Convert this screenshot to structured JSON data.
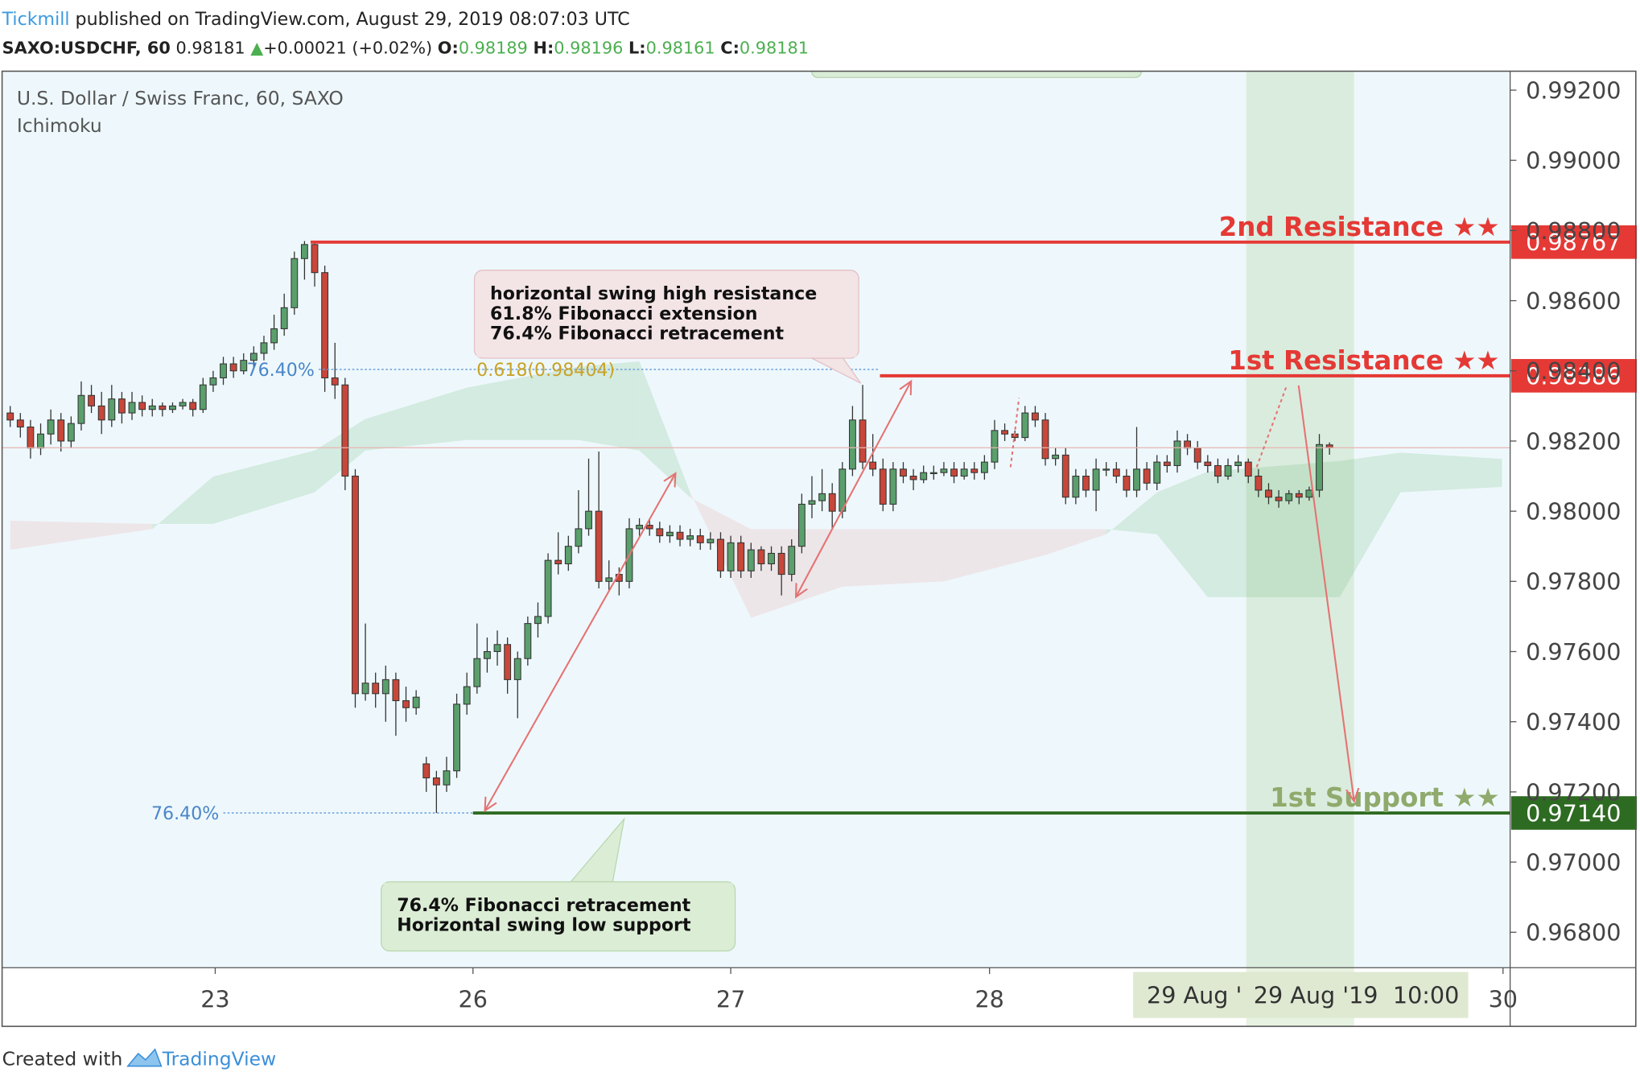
{
  "header": {
    "brand": "Tickmill",
    "published": "published on TradingView.com, August 29, 2019 08:07:03 UTC",
    "symbol": "SAXO:USDCHF, 60",
    "last": "0.98181",
    "arrow": "▲",
    "change": "+0.00021 (+0.02%)",
    "o_label": "O:",
    "o": "0.98189",
    "h_label": "H:",
    "h": "0.98196",
    "l_label": "L:",
    "l": "0.98161",
    "c_label": "C:",
    "c": "0.98181"
  },
  "chart_data": {
    "type": "candlestick",
    "title": "U.S. Dollar / Swiss Franc, 60, SAXO",
    "subtitle": "Ichimoku",
    "up_color": "#5a9f6c",
    "down_color": "#c8473a",
    "xlim": [
      -0.8,
      147.8
    ],
    "xticks": [
      {
        "value": 20.2,
        "label": "23"
      },
      {
        "value": 45.6,
        "label": "26"
      },
      {
        "value": 71.0,
        "label": "27"
      },
      {
        "value": 96.5,
        "label": "28"
      },
      {
        "value": 147.1,
        "label": "30"
      }
    ],
    "ylim": [
      0.96699,
      0.99254
    ],
    "yticks": [
      {
        "value": 0.968,
        "label": "0.96800"
      },
      {
        "value": 0.97,
        "label": "0.97000"
      },
      {
        "value": 0.972,
        "label": "0.97200"
      },
      {
        "value": 0.974,
        "label": "0.97400"
      },
      {
        "value": 0.976,
        "label": "0.97600"
      },
      {
        "value": 0.978,
        "label": "0.97800"
      },
      {
        "value": 0.98,
        "label": "0.98000"
      },
      {
        "value": 0.982,
        "label": "0.98200"
      },
      {
        "value": 0.984,
        "label": "0.98400"
      },
      {
        "value": 0.986,
        "label": "0.98600"
      },
      {
        "value": 0.988,
        "label": "0.98800"
      },
      {
        "value": 0.99,
        "label": "0.99000"
      },
      {
        "value": 0.992,
        "label": "0.99200"
      }
    ],
    "candles": [
      [
        0.9828,
        0.983,
        0.9824,
        0.9826
      ],
      [
        0.9826,
        0.9828,
        0.9821,
        0.9824
      ],
      [
        0.9824,
        0.9826,
        0.9815,
        0.9818
      ],
      [
        0.9818,
        0.9825,
        0.9816,
        0.9822
      ],
      [
        0.9822,
        0.9829,
        0.9819,
        0.9826
      ],
      [
        0.9826,
        0.9828,
        0.9817,
        0.982
      ],
      [
        0.982,
        0.9827,
        0.9818,
        0.9825
      ],
      [
        0.9825,
        0.9837,
        0.9823,
        0.9833
      ],
      [
        0.9833,
        0.9836,
        0.9828,
        0.983
      ],
      [
        0.983,
        0.9834,
        0.9822,
        0.9826
      ],
      [
        0.9826,
        0.9836,
        0.9824,
        0.9832
      ],
      [
        0.9832,
        0.9834,
        0.9825,
        0.9828
      ],
      [
        0.9828,
        0.9834,
        0.9826,
        0.9831
      ],
      [
        0.9831,
        0.9833,
        0.9827,
        0.9829
      ],
      [
        0.9829,
        0.9832,
        0.9827,
        0.983
      ],
      [
        0.983,
        0.9831,
        0.9827,
        0.9829
      ],
      [
        0.9829,
        0.9831,
        0.9828,
        0.983
      ],
      [
        0.983,
        0.9832,
        0.9829,
        0.9831
      ],
      [
        0.9831,
        0.9832,
        0.9827,
        0.9829
      ],
      [
        0.9829,
        0.9838,
        0.9828,
        0.9836
      ],
      [
        0.9836,
        0.984,
        0.9834,
        0.9838
      ],
      [
        0.9838,
        0.9844,
        0.9836,
        0.9842
      ],
      [
        0.9842,
        0.9844,
        0.9838,
        0.984
      ],
      [
        0.984,
        0.9845,
        0.9839,
        0.9843
      ],
      [
        0.9843,
        0.9847,
        0.9841,
        0.9845
      ],
      [
        0.9845,
        0.985,
        0.9843,
        0.9848
      ],
      [
        0.9848,
        0.9856,
        0.9846,
        0.9852
      ],
      [
        0.9852,
        0.9862,
        0.985,
        0.9858
      ],
      [
        0.9858,
        0.9874,
        0.9856,
        0.9872
      ],
      [
        0.9872,
        0.9877,
        0.9866,
        0.9876
      ],
      [
        0.9876,
        0.9877,
        0.9864,
        0.9868
      ],
      [
        0.9868,
        0.987,
        0.9834,
        0.9838
      ],
      [
        0.9838,
        0.9848,
        0.9832,
        0.9836
      ],
      [
        0.9836,
        0.9838,
        0.9806,
        0.981
      ],
      [
        0.981,
        0.9812,
        0.9744,
        0.9748
      ],
      [
        0.9748,
        0.9768,
        0.9746,
        0.9751
      ],
      [
        0.9751,
        0.9754,
        0.9744,
        0.9748
      ],
      [
        0.9748,
        0.9756,
        0.974,
        0.9752
      ],
      [
        0.9752,
        0.9754,
        0.9736,
        0.9746
      ],
      [
        0.9746,
        0.975,
        0.974,
        0.9744
      ],
      [
        0.9744,
        0.9749,
        0.9742,
        0.9747
      ],
      [
        0.9728,
        0.973,
        0.972,
        0.9724
      ],
      [
        0.9724,
        0.9726,
        0.9714,
        0.9722
      ],
      [
        0.9722,
        0.973,
        0.972,
        0.9726
      ],
      [
        0.9726,
        0.9748,
        0.9724,
        0.9745
      ],
      [
        0.9745,
        0.9754,
        0.9742,
        0.975
      ],
      [
        0.975,
        0.9768,
        0.9748,
        0.9758
      ],
      [
        0.9758,
        0.9764,
        0.9754,
        0.976
      ],
      [
        0.976,
        0.9766,
        0.9756,
        0.9762
      ],
      [
        0.9762,
        0.9764,
        0.9748,
        0.9752
      ],
      [
        0.9752,
        0.976,
        0.9741,
        0.9758
      ],
      [
        0.9758,
        0.977,
        0.9756,
        0.9768
      ],
      [
        0.9768,
        0.9774,
        0.9764,
        0.977
      ],
      [
        0.977,
        0.9788,
        0.9768,
        0.9786
      ],
      [
        0.9786,
        0.9794,
        0.9782,
        0.9785
      ],
      [
        0.9785,
        0.9793,
        0.9783,
        0.979
      ],
      [
        0.979,
        0.9806,
        0.9788,
        0.9795
      ],
      [
        0.9795,
        0.9815,
        0.9793,
        0.98
      ],
      [
        0.98,
        0.9817,
        0.9778,
        0.978
      ],
      [
        0.978,
        0.9786,
        0.9777,
        0.9781
      ],
      [
        0.9782,
        0.9784,
        0.9776,
        0.978
      ],
      [
        0.978,
        0.9798,
        0.9778,
        0.9795
      ],
      [
        0.9795,
        0.9798,
        0.9793,
        0.9796
      ],
      [
        0.9796,
        0.9798,
        0.9793,
        0.9795
      ],
      [
        0.9795,
        0.9797,
        0.9791,
        0.9793
      ],
      [
        0.9793,
        0.9796,
        0.9791,
        0.9794
      ],
      [
        0.9794,
        0.9796,
        0.979,
        0.9792
      ],
      [
        0.9792,
        0.9795,
        0.979,
        0.9793
      ],
      [
        0.9793,
        0.9795,
        0.9789,
        0.9791
      ],
      [
        0.9791,
        0.9794,
        0.9789,
        0.9792
      ],
      [
        0.9792,
        0.9794,
        0.9781,
        0.9783
      ],
      [
        0.9783,
        0.9793,
        0.9781,
        0.9791
      ],
      [
        0.9791,
        0.9793,
        0.9781,
        0.9783
      ],
      [
        0.9783,
        0.9791,
        0.9781,
        0.9789
      ],
      [
        0.9789,
        0.979,
        0.9783,
        0.9785
      ],
      [
        0.9785,
        0.979,
        0.9783,
        0.9788
      ],
      [
        0.9788,
        0.979,
        0.9776,
        0.9782
      ],
      [
        0.9782,
        0.9792,
        0.978,
        0.979
      ],
      [
        0.979,
        0.9805,
        0.9788,
        0.9802
      ],
      [
        0.9802,
        0.981,
        0.9798,
        0.9803
      ],
      [
        0.9803,
        0.9812,
        0.98,
        0.9805
      ],
      [
        0.9805,
        0.9808,
        0.9795,
        0.98
      ],
      [
        0.98,
        0.9814,
        0.9798,
        0.9812
      ],
      [
        0.9812,
        0.983,
        0.981,
        0.9826
      ],
      [
        0.9826,
        0.9836,
        0.9812,
        0.9814
      ],
      [
        0.9814,
        0.9822,
        0.981,
        0.9812
      ],
      [
        0.9812,
        0.9815,
        0.98,
        0.9802
      ],
      [
        0.9802,
        0.9814,
        0.98,
        0.9812
      ],
      [
        0.9812,
        0.9814,
        0.9808,
        0.981
      ],
      [
        0.981,
        0.9812,
        0.9806,
        0.9809
      ],
      [
        0.9809,
        0.9813,
        0.9808,
        0.9811
      ],
      [
        0.9811,
        0.9813,
        0.9809,
        0.9811
      ],
      [
        0.9811,
        0.9814,
        0.981,
        0.9812
      ],
      [
        0.9812,
        0.9814,
        0.9808,
        0.981
      ],
      [
        0.981,
        0.9814,
        0.9809,
        0.9812
      ],
      [
        0.9812,
        0.9814,
        0.9809,
        0.9811
      ],
      [
        0.9811,
        0.9816,
        0.9809,
        0.9814
      ],
      [
        0.9814,
        0.9826,
        0.9812,
        0.9823
      ],
      [
        0.9823,
        0.9825,
        0.982,
        0.9822
      ],
      [
        0.9822,
        0.9823,
        0.982,
        0.9821
      ],
      [
        0.9821,
        0.983,
        0.982,
        0.9828
      ],
      [
        0.9828,
        0.983,
        0.9824,
        0.9826
      ],
      [
        0.9826,
        0.9828,
        0.9813,
        0.9815
      ],
      [
        0.9815,
        0.9818,
        0.9813,
        0.9816
      ],
      [
        0.9816,
        0.9818,
        0.9802,
        0.9804
      ],
      [
        0.9804,
        0.9812,
        0.9802,
        0.981
      ],
      [
        0.981,
        0.9812,
        0.9804,
        0.9806
      ],
      [
        0.9806,
        0.9815,
        0.98,
        0.9812
      ],
      [
        0.9812,
        0.9814,
        0.981,
        0.9812
      ],
      [
        0.9812,
        0.9814,
        0.9808,
        0.981
      ],
      [
        0.981,
        0.9812,
        0.9804,
        0.9806
      ],
      [
        0.9806,
        0.9824,
        0.9804,
        0.9812
      ],
      [
        0.9812,
        0.9814,
        0.9806,
        0.9808
      ],
      [
        0.9808,
        0.9816,
        0.9806,
        0.9814
      ],
      [
        0.9814,
        0.9816,
        0.9811,
        0.9813
      ],
      [
        0.9813,
        0.9823,
        0.9811,
        0.982
      ],
      [
        0.982,
        0.9822,
        0.9816,
        0.9818
      ],
      [
        0.9818,
        0.982,
        0.9812,
        0.9814
      ],
      [
        0.9814,
        0.9816,
        0.9811,
        0.9813
      ],
      [
        0.9813,
        0.9815,
        0.9808,
        0.981
      ],
      [
        0.981,
        0.9815,
        0.9809,
        0.9813
      ],
      [
        0.9813,
        0.9816,
        0.9811,
        0.9814
      ],
      [
        0.9814,
        0.9815,
        0.9808,
        0.981
      ],
      [
        0.981,
        0.9812,
        0.9804,
        0.9806
      ],
      [
        0.9806,
        0.9808,
        0.9802,
        0.9804
      ],
      [
        0.9804,
        0.9806,
        0.9801,
        0.9803
      ],
      [
        0.9803,
        0.9806,
        0.9802,
        0.9805
      ],
      [
        0.9805,
        0.9806,
        0.9802,
        0.9804
      ],
      [
        0.9804,
        0.9807,
        0.9803,
        0.9806
      ],
      [
        0.9806,
        0.9822,
        0.9804,
        0.9819
      ],
      [
        0.98189,
        0.98196,
        0.98161,
        0.98181
      ]
    ],
    "cloud": {
      "up_color": "rgba(90,180,100,0.18)",
      "down_color": "rgba(230,110,110,0.13)",
      "x": [
        0,
        14,
        20,
        30,
        35,
        45,
        56,
        62,
        67,
        73,
        82,
        92,
        102,
        108,
        113,
        118,
        131,
        137,
        147
      ],
      "span_a": [
        0.9789,
        0.97949,
        0.98099,
        0.98173,
        0.98263,
        0.98352,
        0.98412,
        0.98427,
        0.98054,
        0.97696,
        0.97785,
        0.978,
        0.97875,
        0.97934,
        0.98054,
        0.98113,
        0.98143,
        0.98167,
        0.98149
      ],
      "span_b": [
        0.97973,
        0.97964,
        0.97964,
        0.98054,
        0.98173,
        0.98203,
        0.98203,
        0.98173,
        0.98039,
        0.97949,
        0.97949,
        0.97949,
        0.97949,
        0.97949,
        0.97934,
        0.97755,
        0.97755,
        0.98054,
        0.98069
      ]
    },
    "levels": [
      {
        "label": "2nd Resistance ★★",
        "value": 0.98767,
        "value_label": "0.98767",
        "start": 29.6,
        "color": "#e53935",
        "text_color": "#e53935"
      },
      {
        "label": "1st Resistance ★★",
        "value": 0.98386,
        "value_label": "0.98386",
        "start": 85.7,
        "color": "#e53935",
        "text_color": "#e53935"
      },
      {
        "label": "1st Support ★★",
        "value": 0.9714,
        "value_label": "0.97140",
        "start": 45.6,
        "color": "#2e6b22",
        "text_color": "#8faa6c"
      }
    ],
    "fib_levels": [
      {
        "label": "76.40%",
        "value": 0.98404,
        "start": 30.4,
        "end": 85.7,
        "extension_label": "0.618(0.98404)"
      },
      {
        "label": "76.40%",
        "value": 0.9714,
        "start": 21.0,
        "end": 45.6
      }
    ],
    "callouts": [
      {
        "lines": [
          "horizontal swing high resistance",
          "61.8% Fibonacci extension",
          "76.4% Fibonacci retracement"
        ]
      },
      {
        "lines": [
          "76.4% Fibonacci retracement",
          "Horizontal swing low support"
        ]
      }
    ],
    "crosshair_labels": [
      "29 Aug '",
      "29 Aug '19",
      "10:00"
    ]
  },
  "footer": {
    "created": "Created with",
    "brand": "TradingView"
  }
}
